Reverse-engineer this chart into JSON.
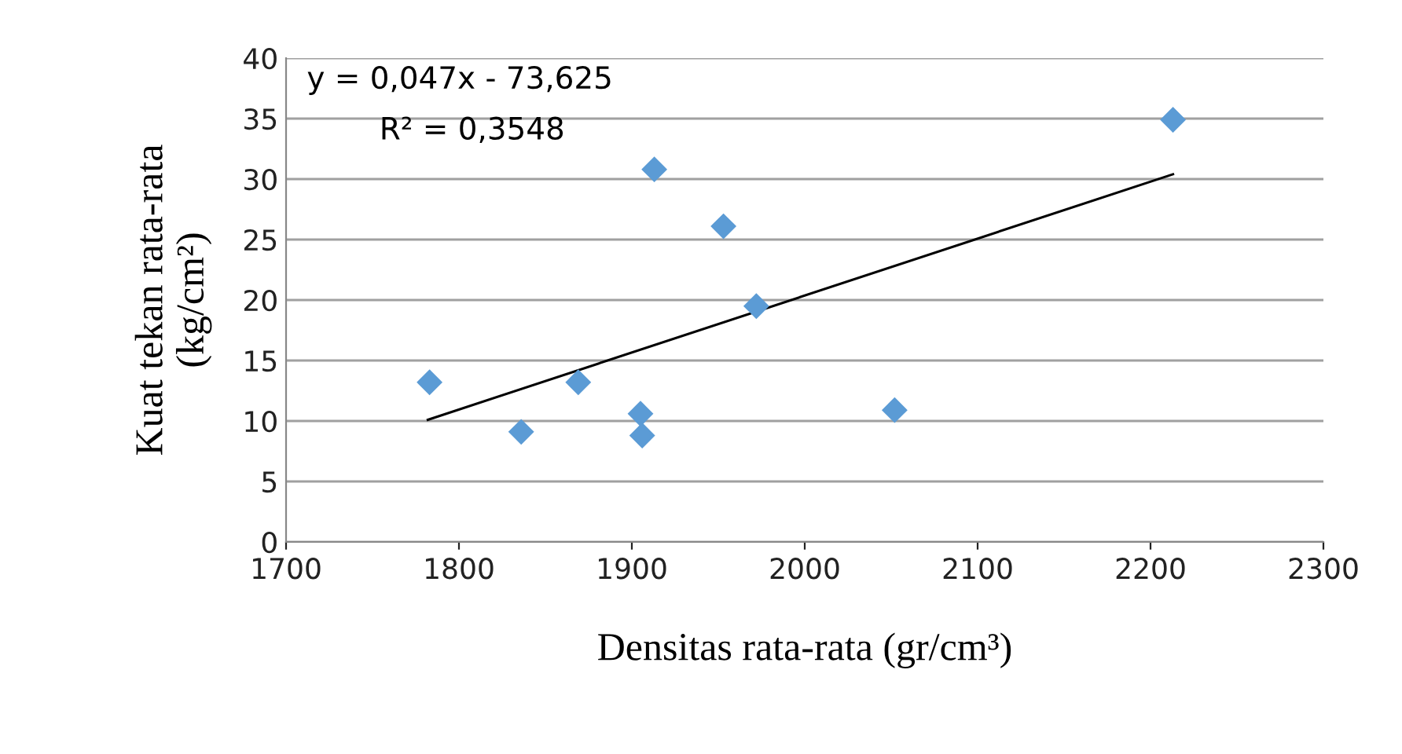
{
  "chart_data": {
    "type": "scatter",
    "xlabel": "Densitas rata-rata (gr/cm³)",
    "ylabel": "Kuat tekan rata-rata\n(kg/cm²)",
    "annotations": [
      "y = 0,047x - 73,625",
      "R² = 0,3548"
    ],
    "series": [
      {
        "color": "#5b9bd5",
        "marker": "diamond",
        "x": [
          1783,
          1836,
          1869,
          1905,
          1906,
          1913,
          1953,
          1972,
          2052,
          2213
        ],
        "values": [
          13.2,
          9.1,
          13.2,
          10.6,
          8.8,
          30.8,
          26.1,
          19.5,
          10.9,
          34.9
        ]
      },
      {
        "type": "line",
        "color": "#000000",
        "marker": "none",
        "x": [
          1782,
          2213
        ],
        "values": [
          10.1,
          30.4
        ]
      }
    ],
    "xlim": [
      1700,
      2300
    ],
    "xticks": [
      1700,
      1800,
      1900,
      2000,
      2100,
      2200,
      2300
    ],
    "ylim": [
      0,
      40
    ],
    "yticks": [
      0,
      5,
      10,
      15,
      20,
      25,
      30,
      35,
      40
    ],
    "grid": "y",
    "legend": false
  }
}
